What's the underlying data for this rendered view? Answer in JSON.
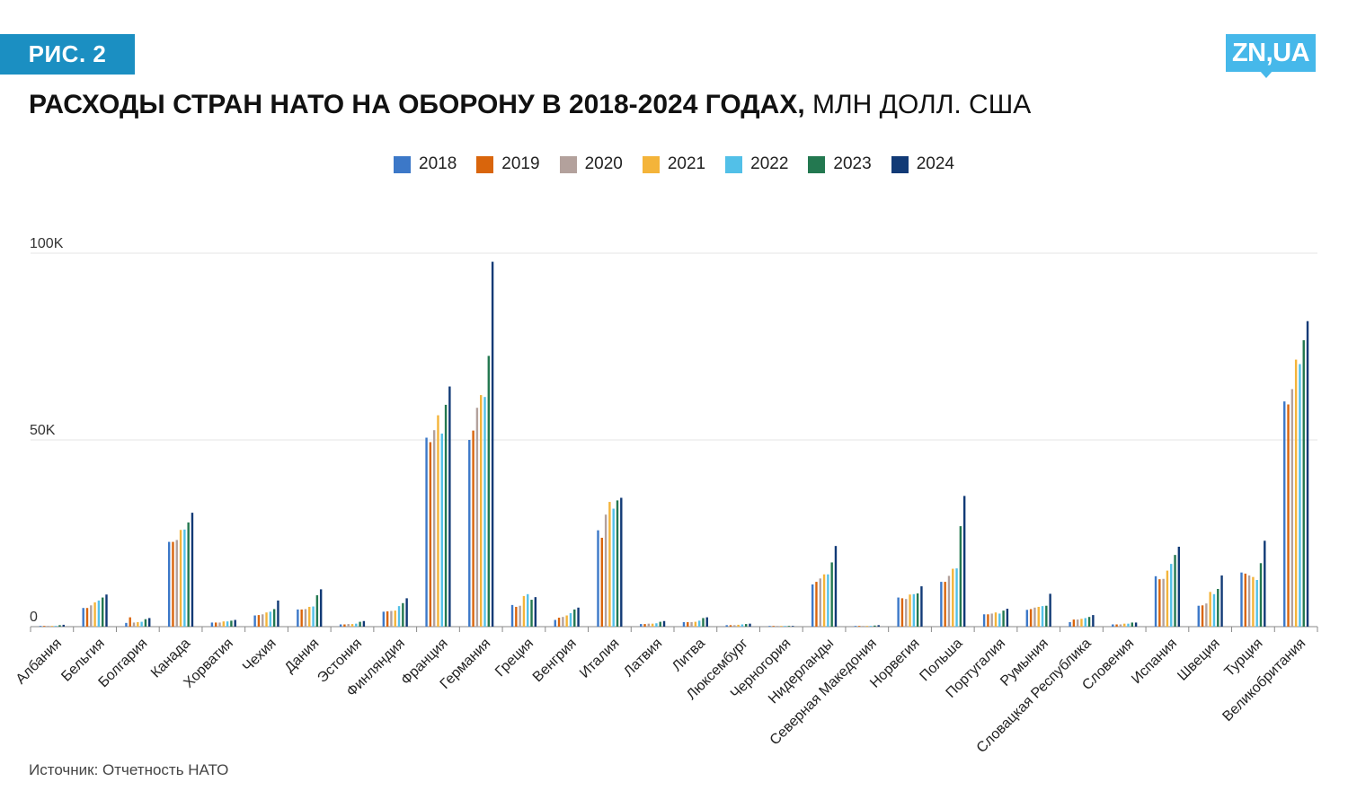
{
  "header": {
    "badge": "РИС. 2",
    "logo": "ZN,UA",
    "title_bold": "РАСХОДЫ СТРАН НАТО НА ОБОРОНУ В 2018-2024 ГОДАХ,",
    "title_normal": " МЛН ДОЛЛ. США"
  },
  "legend": [
    {
      "label": "2018",
      "color": "#3c78c8"
    },
    {
      "label": "2019",
      "color": "#d9650c"
    },
    {
      "label": "2020",
      "color": "#b3a19c"
    },
    {
      "label": "2021",
      "color": "#f4b43a"
    },
    {
      "label": "2022",
      "color": "#52c0e8"
    },
    {
      "label": "2023",
      "color": "#237850"
    },
    {
      "label": "2024",
      "color": "#113a76"
    }
  ],
  "source": "Источник: Отчетность НАТО",
  "chart_data": {
    "type": "bar",
    "title": "РАСХОДЫ СТРАН НАТО НА ОБОРОНУ В 2018-2024 ГОДАХ, МЛН ДОЛЛ. США",
    "xlabel": "",
    "ylabel": "",
    "ylim": [
      0,
      100000
    ],
    "yticks": [
      0,
      50000,
      100000
    ],
    "ytick_labels": [
      "0",
      "50K",
      "100K"
    ],
    "grid": true,
    "legend_position": "top-center",
    "categories": [
      "Албания",
      "Бельгия",
      "Болгария",
      "Канада",
      "Хорватия",
      "Чехия",
      "Дания",
      "Эстония",
      "Финляндия",
      "Франция",
      "Германия",
      "Греция",
      "Венгрия",
      "Италия",
      "Латвия",
      "Литва",
      "Люксембург",
      "Черногория",
      "Нидерланды",
      "Северная Македония",
      "Норвегия",
      "Польша",
      "Португалия",
      "Румыния",
      "Словацкая Республика",
      "Словения",
      "Испания",
      "Швеция",
      "Турция",
      "Великобритания"
    ],
    "series": [
      {
        "name": "2018",
        "values": [
          200,
          5000,
          1000,
          22700,
          1100,
          3000,
          4600,
          600,
          4000,
          50600,
          50000,
          5800,
          1800,
          25800,
          700,
          1200,
          400,
          100,
          11300,
          150,
          7800,
          12000,
          3300,
          4500,
          1200,
          600,
          13500,
          5600,
          14500,
          60300
        ]
      },
      {
        "name": "2019",
        "values": [
          200,
          5000,
          2500,
          22700,
          1100,
          3100,
          4600,
          600,
          4100,
          49400,
          52500,
          5300,
          2400,
          23800,
          700,
          1200,
          400,
          100,
          12000,
          150,
          7600,
          12000,
          3300,
          4700,
          1900,
          600,
          12700,
          5700,
          14200,
          59500
        ]
      },
      {
        "name": "2020",
        "values": [
          200,
          5700,
          1100,
          23200,
          1100,
          3300,
          4700,
          700,
          4200,
          52600,
          58600,
          5600,
          2600,
          30000,
          800,
          1200,
          400,
          100,
          12900,
          150,
          7400,
          13600,
          3500,
          5100,
          1900,
          600,
          12800,
          6200,
          13700,
          63600
        ]
      },
      {
        "name": "2021",
        "values": [
          200,
          6500,
          1200,
          25900,
          1400,
          3800,
          5300,
          700,
          4300,
          56600,
          62000,
          8200,
          3000,
          33400,
          800,
          1300,
          500,
          100,
          14000,
          200,
          8600,
          15500,
          3800,
          5300,
          2100,
          800,
          15000,
          9300,
          13300,
          71500
        ]
      },
      {
        "name": "2022",
        "values": [
          200,
          7000,
          1300,
          26000,
          1400,
          4000,
          5400,
          800,
          5500,
          51700,
          61500,
          8700,
          3600,
          31600,
          900,
          1600,
          600,
          100,
          14000,
          200,
          8700,
          15600,
          3500,
          5500,
          2300,
          800,
          16800,
          8700,
          12500,
          70300
        ]
      },
      {
        "name": "2023",
        "values": [
          400,
          7800,
          2000,
          27900,
          1600,
          4700,
          8400,
          1300,
          6300,
          59400,
          72500,
          7200,
          4600,
          33800,
          1300,
          2300,
          700,
          100,
          17200,
          300,
          8900,
          26900,
          4300,
          5600,
          2600,
          1100,
          19200,
          10100,
          17000,
          76700
        ]
      },
      {
        "name": "2024",
        "values": [
          500,
          8600,
          2300,
          30500,
          1800,
          7000,
          10000,
          1500,
          7600,
          64300,
          97700,
          7900,
          5100,
          34500,
          1500,
          2500,
          800,
          100,
          21600,
          400,
          10800,
          35000,
          4800,
          8800,
          3100,
          1100,
          21400,
          13700,
          23000,
          81800
        ]
      }
    ]
  }
}
